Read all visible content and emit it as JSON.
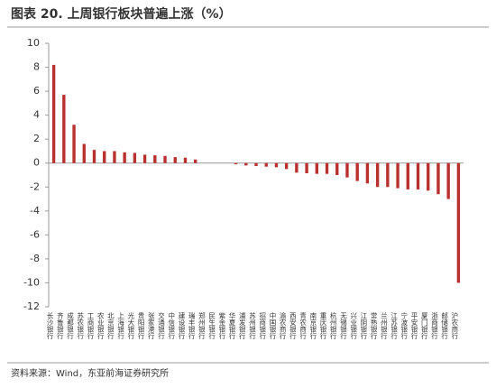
{
  "chart_data": {
    "type": "bar",
    "title": "图表 20. 上周银行板块普遍上涨（%）",
    "source": "资料来源：Wind，东亚前海证券研究所",
    "color": "#b8312f",
    "categories": [
      "长沙银行",
      "齐鲁银行",
      "成都银行",
      "苏农银行",
      "工商银行",
      "农业银行",
      "北京银行",
      "上海银行",
      "光大银行",
      "贵阳银行",
      "张家港行",
      "交通银行",
      "中信银行",
      "建设银行",
      "瑞丰银行",
      "郑州银行",
      "民生银行",
      "紫金银行",
      "华夏银行",
      "浦发银行",
      "苏州银行",
      "招商银行",
      "中国银行",
      "渝农商行",
      "西安银行",
      "青农商行",
      "南京银行",
      "重庆银行",
      "杭州银行",
      "无锡银行",
      "兴业银行",
      "江阴银行",
      "常熟银行",
      "兰州银行",
      "江苏银行",
      "宁波银行",
      "平安银行",
      "厦门银行",
      "浙商银行",
      "邮储银行",
      "沪农商行"
    ],
    "values": [
      8.2,
      5.7,
      3.2,
      1.6,
      1.1,
      1.0,
      1.0,
      0.9,
      0.85,
      0.7,
      0.65,
      0.6,
      0.5,
      0.45,
      0.3,
      0,
      0,
      0,
      -0.1,
      -0.2,
      -0.25,
      -0.3,
      -0.35,
      -0.5,
      -0.8,
      -0.85,
      -0.9,
      -0.9,
      -1.0,
      -1.2,
      -1.5,
      -1.7,
      -2.0,
      -2.0,
      -2.1,
      -2.2,
      -2.2,
      -2.3,
      -2.6,
      -3.0,
      -10
    ],
    "ylim": [
      -12,
      10
    ],
    "yticks": [
      -12,
      -10,
      -8,
      -6,
      -4,
      -2,
      0,
      2,
      4,
      6,
      8,
      10
    ]
  }
}
